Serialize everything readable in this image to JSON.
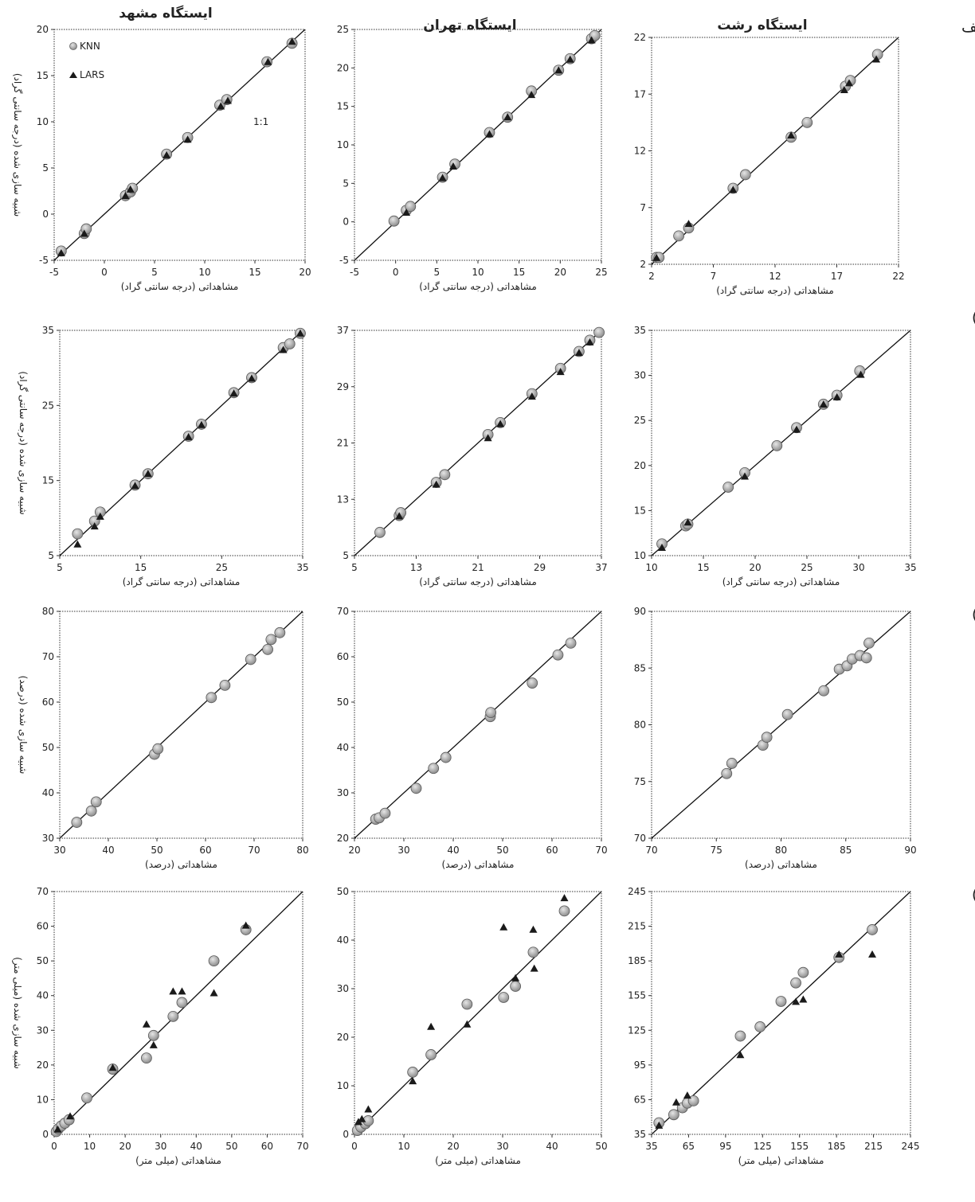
{
  "figure": {
    "stations": [
      "ایستگاه مشهد",
      "ایستگاه تهران",
      "ایستگاه رشت"
    ],
    "row_labels": [
      "الف",
      "ب )",
      "ج )",
      "د )"
    ],
    "legend": [
      "KNN",
      "LARS"
    ],
    "one_to_one_label": "1:1"
  },
  "chart_data": [
    {
      "id": "a1",
      "type": "scatter",
      "station": "ایستگاه مشهد",
      "row": "الف",
      "xlabel": "مشاهداتی (درجه سانتی گراد)",
      "ylabel": "شبیه سازی شده (درجه سانتی گراد)",
      "xlim": [
        -5,
        20
      ],
      "ylim": [
        -5,
        20
      ],
      "xticks": [
        -5,
        0,
        5,
        10,
        15,
        20
      ],
      "yticks": [
        -5,
        0,
        5,
        10,
        15,
        20
      ],
      "series": [
        {
          "name": "KNN",
          "x": [
            -4.3,
            -2.0,
            -1.8,
            2.1,
            2.6,
            2.8,
            6.2,
            8.3,
            11.5,
            12.2,
            16.2,
            18.7
          ],
          "y": [
            -4.0,
            -2.1,
            -1.6,
            2.0,
            2.4,
            2.8,
            6.5,
            8.3,
            11.8,
            12.4,
            16.5,
            18.5
          ]
        },
        {
          "name": "LARS",
          "x": [
            -4.3,
            -2.0,
            2.1,
            2.6,
            6.2,
            8.3,
            11.6,
            12.3,
            16.3,
            18.7
          ],
          "y": [
            -4.3,
            -2.2,
            1.9,
            2.6,
            6.3,
            8.0,
            11.6,
            12.2,
            16.4,
            18.6
          ]
        }
      ]
    },
    {
      "id": "a2",
      "type": "scatter",
      "station": "ایستگاه تهران",
      "row": "الف",
      "xlabel": "مشاهداتی (درجه سانتی گراد)",
      "ylabel": "",
      "xlim": [
        -5,
        25
      ],
      "ylim": [
        -5,
        25
      ],
      "xticks": [
        -5,
        0,
        5,
        10,
        15,
        20,
        25
      ],
      "yticks": [
        -5,
        0,
        5,
        10,
        15,
        20,
        25
      ],
      "series": [
        {
          "name": "KNN",
          "x": [
            -0.2,
            1.3,
            1.8,
            5.7,
            7.2,
            11.4,
            13.6,
            16.5,
            19.8,
            21.2,
            23.8,
            24.2
          ],
          "y": [
            0.1,
            1.5,
            2.0,
            5.8,
            7.5,
            11.6,
            13.6,
            17.0,
            19.7,
            21.2,
            23.8,
            24.2
          ]
        },
        {
          "name": "LARS",
          "x": [
            1.3,
            5.7,
            7.0,
            11.4,
            13.6,
            16.5,
            19.8,
            21.2,
            23.8
          ],
          "y": [
            1.1,
            5.6,
            7.1,
            11.3,
            13.5,
            16.4,
            19.6,
            21.0,
            23.5
          ]
        }
      ]
    },
    {
      "id": "a3",
      "type": "scatter",
      "station": "ایستگاه رشت",
      "row": "الف",
      "xlabel": "مشاهداتی (درجه سانتی گراد)",
      "ylabel": "",
      "xlim": [
        2,
        22
      ],
      "ylim": [
        2,
        22
      ],
      "xticks": [
        2,
        7,
        12,
        17,
        22
      ],
      "yticks": [
        2,
        7,
        12,
        17,
        22
      ],
      "series": [
        {
          "name": "KNN",
          "x": [
            2.4,
            2.6,
            4.2,
            5.0,
            8.6,
            9.6,
            13.3,
            14.6,
            17.7,
            18.1,
            20.3
          ],
          "y": [
            2.6,
            2.6,
            4.5,
            5.2,
            8.7,
            9.9,
            13.2,
            14.5,
            17.7,
            18.2,
            20.5
          ]
        },
        {
          "name": "LARS",
          "x": [
            2.4,
            5.0,
            8.6,
            13.3,
            17.6,
            18.0,
            20.2
          ],
          "y": [
            2.5,
            5.5,
            8.5,
            13.3,
            17.3,
            17.9,
            20.0
          ]
        }
      ]
    },
    {
      "id": "b1",
      "type": "scatter",
      "station": "ایستگاه مشهد",
      "row": "ب",
      "xlabel": "مشاهداتی (درجه سانتی گراد)",
      "ylabel": "شبیه سازی شده (درجه سانتی گراد)",
      "xlim": [
        5,
        35
      ],
      "ylim": [
        5,
        35
      ],
      "xticks": [
        5,
        15,
        25,
        35
      ],
      "yticks": [
        5,
        15,
        25,
        35
      ],
      "series": [
        {
          "name": "KNN",
          "x": [
            7.2,
            9.3,
            10.0,
            14.3,
            15.9,
            20.9,
            22.5,
            26.5,
            28.7,
            32.6,
            33.4,
            34.7
          ],
          "y": [
            7.9,
            9.6,
            10.8,
            14.4,
            15.9,
            20.9,
            22.5,
            26.7,
            28.7,
            32.7,
            33.2,
            34.6
          ]
        },
        {
          "name": "LARS",
          "x": [
            7.2,
            9.3,
            10.0,
            14.3,
            15.9,
            20.9,
            22.5,
            26.5,
            28.7,
            32.6,
            34.7
          ],
          "y": [
            6.4,
            8.8,
            10.1,
            14.2,
            15.8,
            20.7,
            22.3,
            26.5,
            28.5,
            32.3,
            34.5
          ]
        }
      ]
    },
    {
      "id": "b2",
      "type": "scatter",
      "station": "ایستگاه تهران",
      "row": "ب",
      "xlabel": "مشاهداتی (درجه سانتی گراد)",
      "ylabel": "",
      "xlim": [
        5,
        37
      ],
      "ylim": [
        5,
        37
      ],
      "xticks": [
        5,
        13,
        21,
        29,
        37
      ],
      "yticks": [
        5,
        13,
        21,
        29,
        37
      ],
      "series": [
        {
          "name": "KNN",
          "x": [
            8.3,
            10.8,
            11.0,
            15.6,
            16.7,
            22.3,
            23.9,
            28.0,
            31.7,
            34.1,
            35.5,
            36.7
          ],
          "y": [
            8.3,
            10.7,
            11.1,
            15.4,
            16.5,
            22.2,
            23.9,
            28.0,
            31.6,
            34.0,
            35.6,
            36.7
          ]
        },
        {
          "name": "LARS",
          "x": [
            10.8,
            15.6,
            22.3,
            23.9,
            28.0,
            31.7,
            34.1,
            35.5
          ],
          "y": [
            10.5,
            15.0,
            21.6,
            23.6,
            27.5,
            31.0,
            33.7,
            35.2
          ]
        }
      ]
    },
    {
      "id": "b3",
      "type": "scatter",
      "station": "ایستگاه رشت",
      "row": "ب",
      "xlabel": "مشاهداتی (درجه سانتی گراد)",
      "ylabel": "",
      "xlim": [
        10,
        35
      ],
      "ylim": [
        10,
        35
      ],
      "xticks": [
        10,
        15,
        20,
        25,
        30,
        35
      ],
      "yticks": [
        10,
        15,
        20,
        25,
        30,
        35
      ],
      "series": [
        {
          "name": "KNN",
          "x": [
            11.0,
            13.3,
            13.5,
            17.4,
            19.0,
            22.1,
            24.0,
            26.6,
            27.9,
            30.1
          ],
          "y": [
            11.3,
            13.3,
            13.5,
            17.6,
            19.2,
            22.2,
            24.2,
            26.8,
            27.8,
            30.5
          ]
        },
        {
          "name": "LARS",
          "x": [
            11.0,
            13.5,
            19.0,
            24.0,
            26.6,
            27.9,
            30.2
          ],
          "y": [
            10.8,
            13.6,
            18.7,
            23.9,
            26.7,
            27.5,
            30.0
          ]
        }
      ]
    },
    {
      "id": "c1",
      "type": "scatter",
      "station": "ایستگاه مشهد",
      "row": "ج",
      "xlabel": "مشاهداتی (درصد)",
      "ylabel": "شبیه سازی شده (درصد)",
      "xlim": [
        30,
        80
      ],
      "ylim": [
        30,
        80
      ],
      "xticks": [
        30,
        40,
        50,
        60,
        70,
        80
      ],
      "yticks": [
        30,
        40,
        50,
        60,
        70,
        80
      ],
      "series": [
        {
          "name": "KNN",
          "x": [
            33.5,
            36.5,
            37.5,
            49.5,
            50.2,
            61.2,
            64.0,
            69.3,
            72.8,
            73.5,
            75.3
          ],
          "y": [
            33.5,
            36.0,
            38.0,
            48.5,
            49.7,
            61.0,
            63.7,
            69.4,
            71.6,
            73.8,
            75.3
          ]
        }
      ]
    },
    {
      "id": "c2",
      "type": "scatter",
      "station": "ایستگاه تهران",
      "row": "ج",
      "xlabel": "مشاهداتی (درصد)",
      "ylabel": "",
      "xlim": [
        20,
        70
      ],
      "ylim": [
        20,
        70
      ],
      "xticks": [
        20,
        30,
        40,
        50,
        60,
        70
      ],
      "yticks": [
        20,
        30,
        40,
        50,
        60,
        70
      ],
      "series": [
        {
          "name": "KNN",
          "x": [
            24.3,
            25.0,
            26.2,
            32.5,
            36.0,
            38.5,
            47.5,
            47.6,
            56.0,
            61.2,
            63.8
          ],
          "y": [
            24.2,
            24.5,
            25.5,
            31.0,
            35.4,
            37.8,
            46.8,
            47.7,
            54.2,
            60.4,
            63.0
          ]
        }
      ]
    },
    {
      "id": "c3",
      "type": "scatter",
      "station": "ایستگاه رشت",
      "row": "ج",
      "xlabel": "مشاهداتی (درصد)",
      "ylabel": "",
      "xlim": [
        70,
        90
      ],
      "ylim": [
        70,
        90
      ],
      "xticks": [
        70,
        75,
        80,
        85,
        90
      ],
      "yticks": [
        70,
        75,
        80,
        85,
        90
      ],
      "series": [
        {
          "name": "KNN",
          "x": [
            75.8,
            76.2,
            78.6,
            78.9,
            80.5,
            83.3,
            84.5,
            85.1,
            85.5,
            86.1,
            86.6,
            86.8
          ],
          "y": [
            75.7,
            76.6,
            78.2,
            78.9,
            80.9,
            83.0,
            84.9,
            85.2,
            85.8,
            86.1,
            85.9,
            87.2
          ]
        }
      ]
    },
    {
      "id": "d1",
      "type": "scatter",
      "station": "ایستگاه مشهد",
      "row": "د",
      "xlabel": "مشاهداتی (میلی متر)",
      "ylabel": "شبیه سازی شده (میلی متر)",
      "xlim": [
        0,
        70
      ],
      "ylim": [
        0,
        70
      ],
      "xticks": [
        0,
        10,
        20,
        30,
        40,
        50,
        60,
        70
      ],
      "yticks": [
        0,
        10,
        20,
        30,
        40,
        50,
        60,
        70
      ],
      "series": [
        {
          "name": "KNN",
          "x": [
            0.6,
            1.2,
            2.0,
            3.0,
            4.2,
            9.2,
            16.5,
            26.0,
            28.0,
            33.5,
            36.0,
            45.0,
            54.0
          ],
          "y": [
            0.8,
            1.6,
            2.4,
            3.2,
            4.2,
            10.5,
            18.8,
            22.0,
            28.5,
            34.0,
            38.0,
            50.0,
            59.0
          ]
        },
        {
          "name": "LARS",
          "x": [
            1.0,
            4.5,
            16.5,
            26.0,
            28.0,
            33.5,
            36.0,
            45.0,
            54.0
          ],
          "y": [
            1.2,
            5.0,
            19.0,
            31.5,
            25.5,
            41.0,
            41.0,
            40.5,
            60.0
          ]
        }
      ]
    },
    {
      "id": "d2",
      "type": "scatter",
      "station": "ایستگاه تهران",
      "row": "د",
      "xlabel": "مشاهداتی (میلی متر)",
      "ylabel": "",
      "xlim": [
        0,
        50
      ],
      "ylim": [
        0,
        50
      ],
      "xticks": [
        0,
        10,
        20,
        30,
        40,
        50
      ],
      "yticks": [
        0,
        10,
        20,
        30,
        40,
        50
      ],
      "series": [
        {
          "name": "KNN",
          "x": [
            0.6,
            1.3,
            2.2,
            2.8,
            11.8,
            15.5,
            22.8,
            30.2,
            32.6,
            36.2,
            42.5
          ],
          "y": [
            0.8,
            1.5,
            2.2,
            2.8,
            12.8,
            16.4,
            26.8,
            28.2,
            30.5,
            37.5,
            46.0
          ]
        },
        {
          "name": "LARS",
          "x": [
            0.8,
            1.5,
            2.8,
            11.8,
            15.5,
            22.8,
            30.2,
            32.6,
            36.2,
            36.4,
            42.5
          ],
          "y": [
            2.4,
            3.0,
            5.0,
            10.8,
            22.0,
            22.5,
            42.5,
            32.0,
            42.0,
            34.0,
            48.5
          ]
        }
      ]
    },
    {
      "id": "d3",
      "type": "scatter",
      "station": "ایستگاه رشت",
      "row": "د",
      "xlabel": "مشاهداتی (میلی متر)",
      "ylabel": "",
      "xlim": [
        35,
        245
      ],
      "ylim": [
        35,
        245
      ],
      "xticks": [
        35,
        65,
        95,
        125,
        155,
        185,
        215,
        245
      ],
      "yticks": [
        35,
        65,
        95,
        125,
        155,
        185,
        215,
        245
      ],
      "series": [
        {
          "name": "KNN",
          "x": [
            41,
            53,
            60,
            64,
            69,
            107,
            123,
            140,
            152,
            158,
            187,
            214
          ],
          "y": [
            45,
            52,
            58,
            62,
            64,
            120,
            128,
            150,
            166,
            175,
            188,
            212
          ]
        },
        {
          "name": "LARS",
          "x": [
            41,
            55,
            64,
            107,
            152,
            158,
            187,
            214
          ],
          "y": [
            42,
            62,
            68,
            103,
            149,
            151,
            190,
            190
          ]
        }
      ]
    }
  ]
}
